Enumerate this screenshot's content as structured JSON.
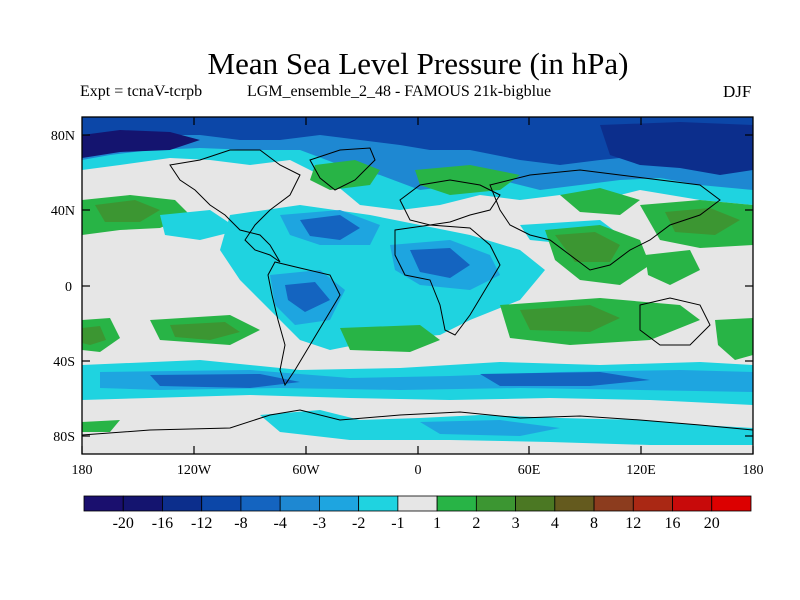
{
  "title": "Mean Sea Level Pressure (in hPa)",
  "subtitle_left": "Expt = tcnaV-tcrpb",
  "subtitle_mid": "LGM_ensemble_2_48 - FAMOUS 21k-bigblue",
  "season": "DJF",
  "lat_ticks": [
    "80N",
    "40N",
    "0",
    "40S",
    "80S"
  ],
  "lon_ticks": [
    "180",
    "120W",
    "60W",
    "0",
    "60E",
    "120E",
    "180"
  ],
  "colorbar": {
    "labels": [
      "-20",
      "-16",
      "-12",
      "-8",
      "-4",
      "-3",
      "-2",
      "-1",
      "1",
      "2",
      "3",
      "4",
      "8",
      "12",
      "16",
      "20"
    ],
    "colors": [
      "#1a0f6e",
      "#14146f",
      "#0c2e8c",
      "#0c47a8",
      "#1464c0",
      "#1e88d2",
      "#1ea5e0",
      "#1fd3e0",
      "#e6e6e6",
      "#28b446",
      "#3c9632",
      "#4b7823",
      "#645a1e",
      "#8c3c1e",
      "#aa2814",
      "#c80a0a",
      "#dc0000"
    ]
  }
}
